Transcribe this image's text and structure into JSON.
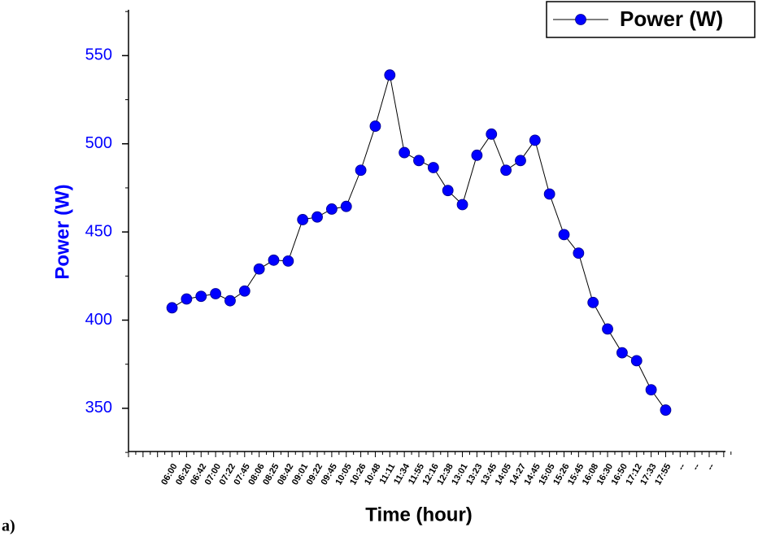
{
  "chart_data": {
    "type": "line",
    "label": "a)",
    "x_label": "Time (hour)",
    "y_label": "Power (W)",
    "categories": [
      "06:00",
      "06:20",
      "06:42",
      "07:00",
      "07:22",
      "07:45",
      "08:06",
      "08:25",
      "08:42",
      "09:01",
      "09:22",
      "09:45",
      "10:05",
      "10:26",
      "10:48",
      "11:11",
      "11:34",
      "11:55",
      "12:16",
      "12:38",
      "13:01",
      "13:23",
      "13:45",
      "14:05",
      "14:27",
      "14:45",
      "15:05",
      "15:26",
      "15:45",
      "16:08",
      "16:30",
      "16:50",
      "17:12",
      "17:33",
      "17:55",
      "--",
      "--",
      "--"
    ],
    "series": [
      {
        "name": "Power (W)",
        "color": "#0000ff",
        "values": [
          407,
          412,
          413.5,
          415,
          411,
          416.5,
          429,
          434,
          433.5,
          457,
          458.5,
          463,
          464.5,
          485,
          510,
          539,
          495,
          490.5,
          486.5,
          473.5,
          465.5,
          493.5,
          505.5,
          485,
          490.5,
          502,
          471.5,
          448.5,
          438,
          410,
          395,
          381.5,
          377,
          360.5,
          349,
          null,
          null,
          null
        ]
      }
    ],
    "ylim": [
      325.5,
      576
    ],
    "yticks": [
      350,
      400,
      450,
      500,
      550
    ],
    "legend": "top-right"
  }
}
